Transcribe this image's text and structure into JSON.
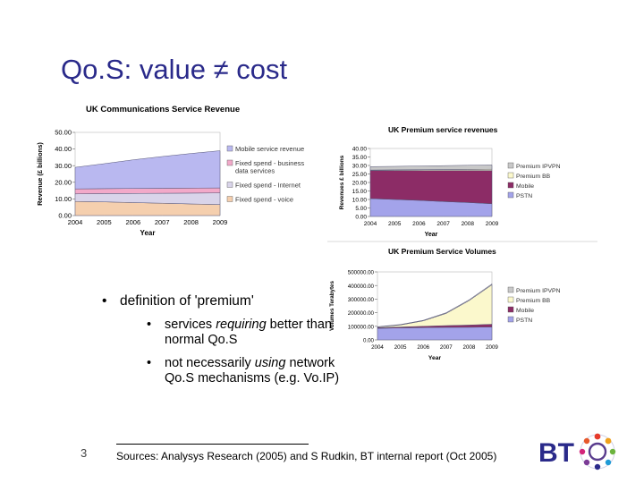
{
  "slide": {
    "title": "Qo.S: value ≠ cost",
    "number": "3",
    "bullet_main": "definition of 'premium'",
    "sub_bullets": [
      {
        "pre": "services ",
        "em": "requiring",
        "post": " better than normal Qo.S"
      },
      {
        "pre": "not necessarily ",
        "em": "using",
        "post": " network Qo.S mechanisms (e.g. Vo.IP)"
      }
    ],
    "bullet_glyph": "•",
    "sources": "Sources: Analysys Research (2005) and S Rudkin, BT internal report (Oct 2005)",
    "logo": {
      "text": "BT",
      "icon": "bt-piper-globe-icon",
      "color": "#2a2a8a"
    }
  },
  "chart_data": [
    {
      "type": "area",
      "stacked": true,
      "title": "UK Communications Service Revenue",
      "xlabel": "Year",
      "ylabel": "Revenue (£ billions)",
      "x": [
        2004,
        2005,
        2006,
        2007,
        2008,
        2009
      ],
      "ylim": [
        0,
        50
      ],
      "yticks": [
        "0.00",
        "10.00",
        "20.00",
        "30.00",
        "40.00",
        "50.00"
      ],
      "legend_position": "right",
      "series": [
        {
          "name": "Fixed spend - voice",
          "color": "#f5cfae",
          "values": [
            8.5,
            8.2,
            7.8,
            7.4,
            7.0,
            6.6
          ]
        },
        {
          "name": "Fixed spend - Internet",
          "color": "#d9d4ea",
          "values": [
            4.5,
            5.0,
            5.5,
            6.0,
            6.5,
            7.0
          ]
        },
        {
          "name": "Fixed spend - business data services",
          "color": "#f2a9c9",
          "values": [
            3.0,
            3.0,
            3.0,
            3.0,
            3.0,
            3.0
          ]
        },
        {
          "name": "Mobile service revenue",
          "color": "#b9b8f0",
          "values": [
            13.0,
            15.0,
            17.2,
            19.1,
            20.8,
            22.4
          ]
        }
      ]
    },
    {
      "type": "area",
      "stacked": true,
      "title": "UK Premium service revenues",
      "xlabel": "Year",
      "ylabel": "Revenues £ billions",
      "x": [
        2004,
        2005,
        2006,
        2007,
        2008,
        2009
      ],
      "ylim": [
        0,
        40
      ],
      "yticks": [
        "0.00",
        "5.00",
        "10.00",
        "15.00",
        "20.00",
        "25.00",
        "30.00",
        "35.00",
        "40.00"
      ],
      "legend_position": "right",
      "series": [
        {
          "name": "PSTN",
          "color": "#a3a3ea",
          "values": [
            10.5,
            10.0,
            9.5,
            8.8,
            8.2,
            7.5
          ]
        },
        {
          "name": "Mobile",
          "color": "#8c2c66",
          "values": [
            16.5,
            17.0,
            17.5,
            18.2,
            18.8,
            19.5
          ]
        },
        {
          "name": "Premium BB",
          "color": "#fbf8cc",
          "values": [
            0.3,
            0.4,
            0.5,
            0.6,
            0.7,
            0.8
          ]
        },
        {
          "name": "Premium IPVPN",
          "color": "#c8c8c8",
          "values": [
            2.0,
            2.1,
            2.2,
            2.3,
            2.4,
            2.5
          ]
        }
      ]
    },
    {
      "type": "area",
      "stacked": true,
      "title": "UK Premium Service Volumes",
      "xlabel": "Year",
      "ylabel": "Volumes Terabytes",
      "x": [
        2004,
        2005,
        2006,
        2007,
        2008,
        2009
      ],
      "ylim": [
        0,
        500000
      ],
      "yticks": [
        "0.00",
        "100000.00",
        "200000.00",
        "300000.00",
        "400000.00",
        "500000.00"
      ],
      "legend_position": "right",
      "series": [
        {
          "name": "PSTN",
          "color": "#a3a3ea",
          "values": [
            85000,
            88000,
            90000,
            92000,
            93000,
            95000
          ]
        },
        {
          "name": "Mobile",
          "color": "#8c2c66",
          "values": [
            5000,
            7000,
            10000,
            13000,
            16000,
            20000
          ]
        },
        {
          "name": "Premium BB",
          "color": "#fbf8cc",
          "values": [
            5000,
            15000,
            40000,
            90000,
            180000,
            290000
          ]
        },
        {
          "name": "Premium IPVPN",
          "color": "#c8c8c8",
          "values": [
            2000,
            3000,
            4000,
            5000,
            6000,
            7000
          ]
        }
      ]
    }
  ]
}
